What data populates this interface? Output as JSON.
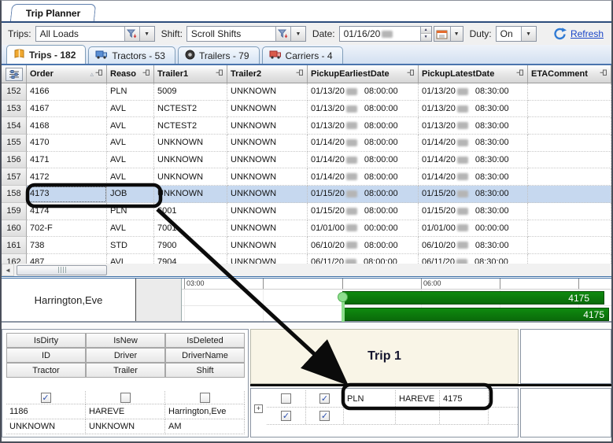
{
  "window": {
    "tab_label": "Trip Planner"
  },
  "toolbar": {
    "trips_label": "Trips:",
    "trips_value": "All Loads",
    "shift_label": "Shift:",
    "shift_value": "Scroll Shifts",
    "date_label": "Date:",
    "date_value": "01/16/20",
    "duty_label": "Duty:",
    "duty_value": "On",
    "refresh_label": "Refresh"
  },
  "tabs": [
    {
      "label": "Trips - 182",
      "icon": "book-icon",
      "active": true
    },
    {
      "label": "Tractors - 53",
      "icon": "truck-blue-icon",
      "active": false
    },
    {
      "label": "Trailers - 79",
      "icon": "tire-icon",
      "active": false
    },
    {
      "label": "Carriers - 4",
      "icon": "truck-red-icon",
      "active": false
    }
  ],
  "grid": {
    "corner_icon": "field-chooser-icon",
    "sort_column": "Order",
    "columns": [
      "Order",
      "Reaso",
      "Trailer1",
      "Trailer2",
      "PickupEarliestDate",
      "PickupLatestDate",
      "ETAComment"
    ],
    "rows": [
      {
        "num": "152",
        "order": "4166",
        "reason": "PLN",
        "trailer1": "5009",
        "trailer2": "UNKNOWN",
        "pe": {
          "date": "01/13/20",
          "time": "08:00:00"
        },
        "pl": {
          "date": "01/13/20",
          "time": "08:30:00"
        },
        "eta": "",
        "selected": false
      },
      {
        "num": "153",
        "order": "4167",
        "reason": "AVL",
        "trailer1": "NCTEST2",
        "trailer2": "UNKNOWN",
        "pe": {
          "date": "01/13/20",
          "time": "08:00:00"
        },
        "pl": {
          "date": "01/13/20",
          "time": "08:30:00"
        },
        "eta": "",
        "selected": false
      },
      {
        "num": "154",
        "order": "4168",
        "reason": "AVL",
        "trailer1": "NCTEST2",
        "trailer2": "UNKNOWN",
        "pe": {
          "date": "01/13/20",
          "time": "08:00:00"
        },
        "pl": {
          "date": "01/13/20",
          "time": "08:30:00"
        },
        "eta": "",
        "selected": false
      },
      {
        "num": "155",
        "order": "4170",
        "reason": "AVL",
        "trailer1": "UNKNOWN",
        "trailer2": "UNKNOWN",
        "pe": {
          "date": "01/14/20",
          "time": "08:00:00"
        },
        "pl": {
          "date": "01/14/20",
          "time": "08:30:00"
        },
        "eta": "",
        "selected": false
      },
      {
        "num": "156",
        "order": "4171",
        "reason": "AVL",
        "trailer1": "UNKNOWN",
        "trailer2": "UNKNOWN",
        "pe": {
          "date": "01/14/20",
          "time": "08:00:00"
        },
        "pl": {
          "date": "01/14/20",
          "time": "08:30:00"
        },
        "eta": "",
        "selected": false
      },
      {
        "num": "157",
        "order": "4172",
        "reason": "AVL",
        "trailer1": "UNKNOWN",
        "trailer2": "UNKNOWN",
        "pe": {
          "date": "01/14/20",
          "time": "08:00:00"
        },
        "pl": {
          "date": "01/14/20",
          "time": "08:30:00"
        },
        "eta": "",
        "selected": false
      },
      {
        "num": "158",
        "order": "4173",
        "reason": "JOB",
        "trailer1": "UNKNOWN",
        "trailer2": "UNKNOWN",
        "pe": {
          "date": "01/15/20",
          "time": "08:00:00"
        },
        "pl": {
          "date": "01/15/20",
          "time": "08:30:00"
        },
        "eta": "",
        "selected": true
      },
      {
        "num": "159",
        "order": "4174",
        "reason": "PLN",
        "trailer1": "6001",
        "trailer2": "UNKNOWN",
        "pe": {
          "date": "01/15/20",
          "time": "08:00:00"
        },
        "pl": {
          "date": "01/15/20",
          "time": "08:30:00"
        },
        "eta": "",
        "selected": false
      },
      {
        "num": "160",
        "order": "702-F",
        "reason": "AVL",
        "trailer1": "7001",
        "trailer2": "UNKNOWN",
        "pe": {
          "date": "01/01/00",
          "time": "00:00:00"
        },
        "pl": {
          "date": "01/01/00",
          "time": "00:00:00"
        },
        "eta": "",
        "selected": false
      },
      {
        "num": "161",
        "order": "738",
        "reason": "STD",
        "trailer1": "7900",
        "trailer2": "UNKNOWN",
        "pe": {
          "date": "06/10/20",
          "time": "08:00:00"
        },
        "pl": {
          "date": "06/10/20",
          "time": "08:30:00"
        },
        "eta": "",
        "selected": false
      },
      {
        "num": "162",
        "order": "487",
        "reason": "AVL",
        "trailer1": "7904",
        "trailer2": "UNKNOWN",
        "pe": {
          "date": "06/11/20",
          "time": "08:00:00"
        },
        "pl": {
          "date": "06/11/20",
          "time": "08:30:00"
        },
        "eta": "",
        "selected": false,
        "partial": true
      }
    ]
  },
  "gantt": {
    "resource": "Harrington,Eve",
    "tick_labels": [
      "03:00",
      "06:00"
    ],
    "bars": [
      {
        "label": "4175"
      },
      {
        "label": "4175"
      }
    ]
  },
  "details": {
    "headers": [
      [
        "IsDirty",
        "IsNew",
        "IsDeleted"
      ],
      [
        "ID",
        "Driver",
        "DriverName"
      ],
      [
        "Tractor",
        "Trailer",
        "Shift"
      ]
    ],
    "checks": [
      true,
      false,
      false
    ],
    "values": [
      [
        "1186",
        "HAREVE",
        "Harrington,Eve"
      ],
      [
        "UNKNOWN",
        "UNKNOWN",
        "AM"
      ]
    ]
  },
  "trip": {
    "title": "Trip 1",
    "rows": [
      {
        "checks": [
          false,
          true
        ],
        "cells": [
          "PLN",
          "HAREVE",
          "4175"
        ]
      },
      {
        "checks": [
          true,
          true
        ],
        "cells": [
          "",
          "",
          ""
        ]
      }
    ]
  }
}
